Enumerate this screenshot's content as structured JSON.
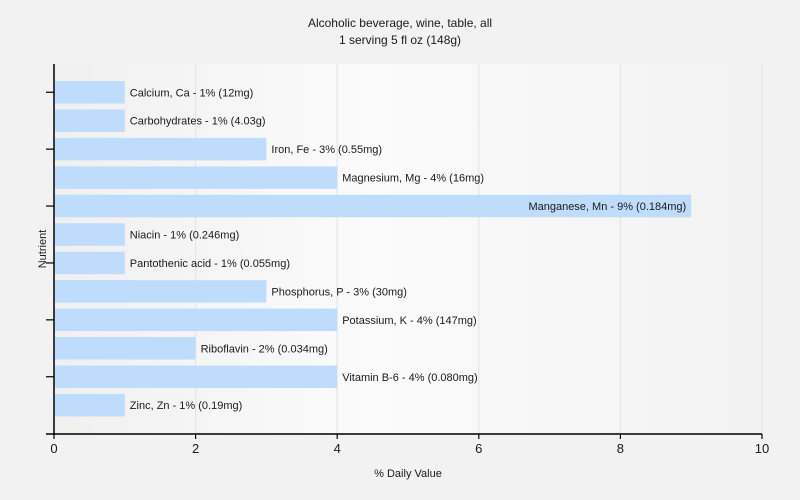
{
  "chart_data": {
    "type": "bar",
    "orientation": "horizontal",
    "title": "Alcoholic beverage, wine, table, all",
    "subtitle": "1 serving 5 fl oz (148g)",
    "xlabel": "% Daily Value",
    "ylabel": "Nutrient",
    "xlim": [
      0,
      10
    ],
    "xticks": [
      "0",
      "2",
      "4",
      "6",
      "8",
      "10"
    ],
    "grid": true,
    "bar_color": "#c0dcfc",
    "categories": [
      "Calcium, Ca",
      "Carbohydrates",
      "Iron, Fe",
      "Magnesium, Mg",
      "Manganese, Mn",
      "Niacin",
      "Pantothenic acid",
      "Phosphorus, P",
      "Potassium, K",
      "Riboflavin",
      "Vitamin B-6",
      "Zinc, Zn"
    ],
    "values": [
      1,
      1,
      3,
      4,
      9,
      1,
      1,
      3,
      4,
      2,
      4,
      1
    ],
    "labels": [
      "Calcium, Ca - 1% (12mg)",
      "Carbohydrates - 1% (4.03g)",
      "Iron, Fe - 3% (0.55mg)",
      "Magnesium, Mg - 4% (16mg)",
      "Manganese, Mn - 9% (0.184mg)",
      "Niacin - 1% (0.246mg)",
      "Pantothenic acid - 1% (0.055mg)",
      "Phosphorus, P - 3% (30mg)",
      "Potassium, K - 4% (147mg)",
      "Riboflavin - 2% (0.034mg)",
      "Vitamin B-6 - 4% (0.080mg)",
      "Zinc, Zn - 1% (0.19mg)"
    ]
  }
}
